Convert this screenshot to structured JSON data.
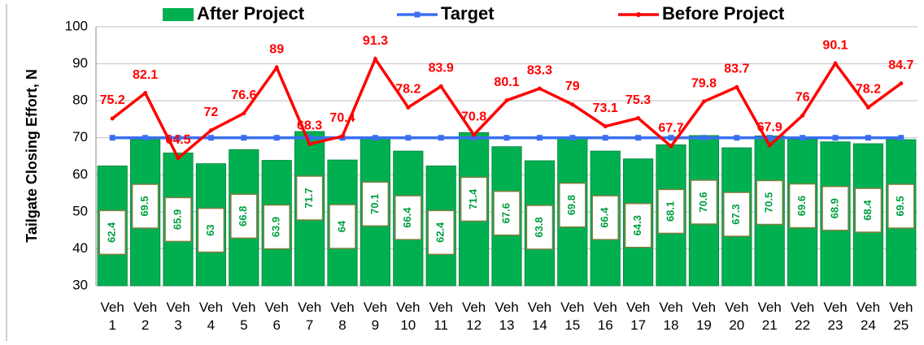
{
  "chart_data": {
    "type": "bar",
    "y_label": "Tailgate Closing Effort, N",
    "categories": [
      "Veh 1",
      "Veh 2",
      "Veh 3",
      "Veh 4",
      "Veh 5",
      "Veh 6",
      "Veh 7",
      "Veh 8",
      "Veh 9",
      "Veh 10",
      "Veh 11",
      "Veh 12",
      "Veh 13",
      "Veh 14",
      "Veh 15",
      "Veh 16",
      "Veh 17",
      "Veh 18",
      "Veh 19",
      "Veh 20",
      "Veh 21",
      "Veh 22",
      "Veh 23",
      "Veh 24",
      "Veh 25"
    ],
    "series": [
      {
        "name": "After Project",
        "type": "bar",
        "color": "#00b050",
        "values": [
          62.4,
          69.5,
          65.9,
          63,
          66.8,
          63.9,
          71.7,
          64,
          70.1,
          66.4,
          62.4,
          71.4,
          67.6,
          63.8,
          69.8,
          66.4,
          64.3,
          68.1,
          70.6,
          67.3,
          70.5,
          69.6,
          68.9,
          68.4,
          69.5
        ]
      },
      {
        "name": "Target",
        "type": "line",
        "color": "#3a6ff0",
        "values": [
          70,
          70,
          70,
          70,
          70,
          70,
          70,
          70,
          70,
          70,
          70,
          70,
          70,
          70,
          70,
          70,
          70,
          70,
          70,
          70,
          70,
          70,
          70,
          70,
          70
        ]
      },
      {
        "name": "Before Project",
        "type": "line",
        "color": "#ff0000",
        "values": [
          75.2,
          82.1,
          64.5,
          72,
          76.6,
          89,
          68.3,
          70.4,
          91.3,
          78.2,
          83.9,
          70.8,
          80.1,
          83.3,
          79,
          73.1,
          75.3,
          67.7,
          79.8,
          83.7,
          67.9,
          76,
          90.1,
          78.2,
          84.7
        ]
      }
    ],
    "ylim": [
      30,
      100
    ],
    "yticks": [
      30,
      40,
      50,
      60,
      70,
      80,
      90,
      100
    ],
    "grid": true
  }
}
